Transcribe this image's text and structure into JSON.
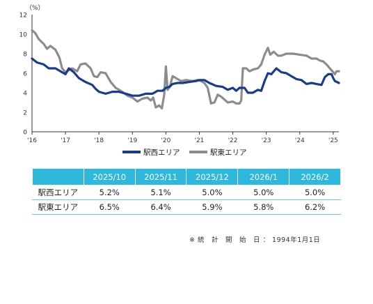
{
  "chart_data": {
    "type": "line",
    "unit_label": "（%）",
    "ylim": [
      0,
      12
    ],
    "yticks": [
      0,
      2,
      4,
      6,
      8,
      10,
      12
    ],
    "x_tick_labels": [
      "'16",
      "'17",
      "'18",
      "'19",
      "'20",
      "'21",
      "'22",
      "'23",
      "'24",
      "'25"
    ],
    "x_tick_years": [
      2016,
      2017,
      2018,
      2019,
      2020,
      2021,
      2022,
      2023,
      2024,
      2025
    ],
    "x_range": [
      2016.0,
      2025.17
    ],
    "grid": false,
    "legend_position": "bottom",
    "series": [
      {
        "name": "駅西エリア",
        "color": "#1a3a8f",
        "points": [
          [
            2016.0,
            7.5
          ],
          [
            2016.15,
            7.1
          ],
          [
            2016.35,
            6.9
          ],
          [
            2016.5,
            6.5
          ],
          [
            2016.7,
            6.5
          ],
          [
            2016.85,
            6.2
          ],
          [
            2017.0,
            5.9
          ],
          [
            2017.1,
            6.5
          ],
          [
            2017.25,
            6.1
          ],
          [
            2017.4,
            5.5
          ],
          [
            2017.6,
            5.1
          ],
          [
            2017.8,
            4.8
          ],
          [
            2017.9,
            4.4
          ],
          [
            2018.0,
            4.1
          ],
          [
            2018.2,
            3.9
          ],
          [
            2018.4,
            4.1
          ],
          [
            2018.6,
            4.1
          ],
          [
            2018.8,
            3.9
          ],
          [
            2019.0,
            3.7
          ],
          [
            2019.2,
            3.7
          ],
          [
            2019.4,
            3.9
          ],
          [
            2019.6,
            3.9
          ],
          [
            2019.75,
            4.2
          ],
          [
            2019.9,
            4.2
          ],
          [
            2020.0,
            4.5
          ],
          [
            2020.1,
            4.6
          ],
          [
            2020.2,
            4.9
          ],
          [
            2020.35,
            5.0
          ],
          [
            2020.5,
            5.0
          ],
          [
            2020.7,
            5.1
          ],
          [
            2020.9,
            5.2
          ],
          [
            2021.0,
            5.3
          ],
          [
            2021.15,
            5.3
          ],
          [
            2021.3,
            5.0
          ],
          [
            2021.5,
            4.7
          ],
          [
            2021.7,
            4.6
          ],
          [
            2021.85,
            4.3
          ],
          [
            2022.0,
            4.5
          ],
          [
            2022.1,
            4.2
          ],
          [
            2022.2,
            4.5
          ],
          [
            2022.35,
            4.5
          ],
          [
            2022.45,
            4.0
          ],
          [
            2022.6,
            4.0
          ],
          [
            2022.75,
            4.3
          ],
          [
            2022.85,
            4.2
          ],
          [
            2022.95,
            5.2
          ],
          [
            2023.05,
            6.0
          ],
          [
            2023.15,
            5.9
          ],
          [
            2023.3,
            6.5
          ],
          [
            2023.45,
            6.1
          ],
          [
            2023.6,
            6.0
          ],
          [
            2023.75,
            5.7
          ],
          [
            2023.9,
            5.4
          ],
          [
            2024.05,
            5.3
          ],
          [
            2024.2,
            4.9
          ],
          [
            2024.35,
            5.0
          ],
          [
            2024.5,
            4.9
          ],
          [
            2024.65,
            4.8
          ],
          [
            2024.75,
            5.6
          ],
          [
            2024.85,
            5.9
          ],
          [
            2024.95,
            5.9
          ],
          [
            2025.0,
            5.5
          ],
          [
            2025.05,
            5.2
          ],
          [
            2025.17,
            5.0
          ]
        ]
      },
      {
        "name": "駅東エリア",
        "color": "#8c8c8c",
        "points": [
          [
            2016.0,
            10.4
          ],
          [
            2016.1,
            10.1
          ],
          [
            2016.2,
            9.5
          ],
          [
            2016.35,
            9.0
          ],
          [
            2016.45,
            8.5
          ],
          [
            2016.55,
            8.8
          ],
          [
            2016.7,
            8.4
          ],
          [
            2016.82,
            7.6
          ],
          [
            2016.9,
            6.5
          ],
          [
            2017.0,
            6.1
          ],
          [
            2017.1,
            6.3
          ],
          [
            2017.2,
            6.5
          ],
          [
            2017.35,
            6.2
          ],
          [
            2017.45,
            6.9
          ],
          [
            2017.6,
            7.0
          ],
          [
            2017.75,
            6.5
          ],
          [
            2017.85,
            5.7
          ],
          [
            2017.95,
            5.6
          ],
          [
            2018.05,
            6.1
          ],
          [
            2018.2,
            6.0
          ],
          [
            2018.35,
            5.1
          ],
          [
            2018.5,
            4.5
          ],
          [
            2018.7,
            4.1
          ],
          [
            2018.85,
            3.7
          ],
          [
            2019.0,
            3.5
          ],
          [
            2019.15,
            3.1
          ],
          [
            2019.3,
            3.4
          ],
          [
            2019.45,
            3.5
          ],
          [
            2019.55,
            3.2
          ],
          [
            2019.62,
            3.5
          ],
          [
            2019.7,
            2.5
          ],
          [
            2019.8,
            2.7
          ],
          [
            2019.88,
            2.4
          ],
          [
            2019.95,
            3.8
          ],
          [
            2020.0,
            6.7
          ],
          [
            2020.05,
            4.3
          ],
          [
            2020.12,
            4.6
          ],
          [
            2020.2,
            5.7
          ],
          [
            2020.3,
            5.5
          ],
          [
            2020.45,
            5.2
          ],
          [
            2020.6,
            5.3
          ],
          [
            2020.8,
            5.2
          ],
          [
            2020.95,
            5.3
          ],
          [
            2021.05,
            5.2
          ],
          [
            2021.15,
            5.0
          ],
          [
            2021.25,
            4.5
          ],
          [
            2021.35,
            2.9
          ],
          [
            2021.45,
            3.0
          ],
          [
            2021.55,
            3.8
          ],
          [
            2021.65,
            3.6
          ],
          [
            2021.75,
            3.3
          ],
          [
            2021.85,
            3.0
          ],
          [
            2022.0,
            3.1
          ],
          [
            2022.1,
            2.9
          ],
          [
            2022.2,
            2.9
          ],
          [
            2022.25,
            3.2
          ],
          [
            2022.3,
            6.5
          ],
          [
            2022.4,
            6.5
          ],
          [
            2022.5,
            6.2
          ],
          [
            2022.62,
            6.4
          ],
          [
            2022.75,
            6.5
          ],
          [
            2022.85,
            6.9
          ],
          [
            2022.95,
            7.9
          ],
          [
            2023.05,
            8.6
          ],
          [
            2023.12,
            7.9
          ],
          [
            2023.22,
            8.2
          ],
          [
            2023.35,
            7.8
          ],
          [
            2023.45,
            7.8
          ],
          [
            2023.6,
            8.0
          ],
          [
            2023.8,
            8.0
          ],
          [
            2024.0,
            7.9
          ],
          [
            2024.2,
            7.8
          ],
          [
            2024.35,
            7.5
          ],
          [
            2024.5,
            7.5
          ],
          [
            2024.6,
            7.3
          ],
          [
            2024.7,
            7.2
          ],
          [
            2024.8,
            6.9
          ],
          [
            2024.9,
            6.5
          ],
          [
            2025.0,
            6.1
          ],
          [
            2025.05,
            5.9
          ],
          [
            2025.1,
            6.2
          ],
          [
            2025.17,
            6.2
          ]
        ]
      }
    ]
  },
  "table": {
    "columns": [
      "2025/10",
      "2025/11",
      "2025/12",
      "2026/1",
      "2026/2"
    ],
    "rows": [
      {
        "label": "駅西エリア",
        "values": [
          "5.2%",
          "5.1%",
          "5.0%",
          "5.0%",
          "5.0%"
        ]
      },
      {
        "label": "駅東エリア",
        "values": [
          "6.5%",
          "6.4%",
          "5.9%",
          "5.8%",
          "6.2%"
        ]
      }
    ]
  },
  "note": "※ 統　計　開　始　日 ： 1994年1月1日"
}
